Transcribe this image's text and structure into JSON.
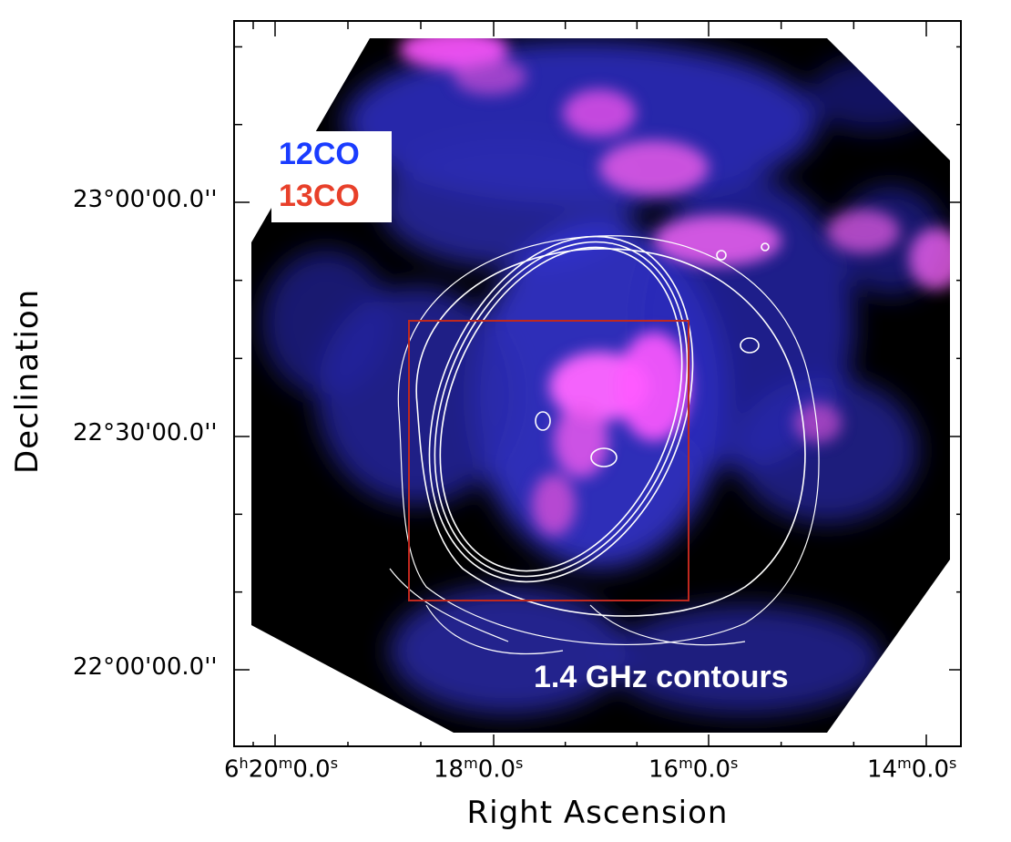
{
  "axes": {
    "xlabel": "Right Ascension",
    "ylabel": "Declination",
    "xticks": [
      {
        "h": "6",
        "m": "20",
        "s": "0.0"
      },
      {
        "m": "18",
        "s": "0.0"
      },
      {
        "m": "16",
        "s": "0.0"
      },
      {
        "m": "14",
        "s": "0.0"
      }
    ],
    "yticks": [
      "23°00'00.0''",
      "22°30'00.0''",
      "22°00'00.0''"
    ]
  },
  "legend": {
    "line1": "12CO",
    "line1_color": "#1a3cff",
    "line2": "13CO",
    "line2_color": "#e8402a"
  },
  "annotation": "1.4 GHz contours",
  "colors": {
    "co12": "#2a2ad0",
    "co13": "#ff55ff",
    "contour": "#ffffff",
    "box": "#c0281e"
  }
}
